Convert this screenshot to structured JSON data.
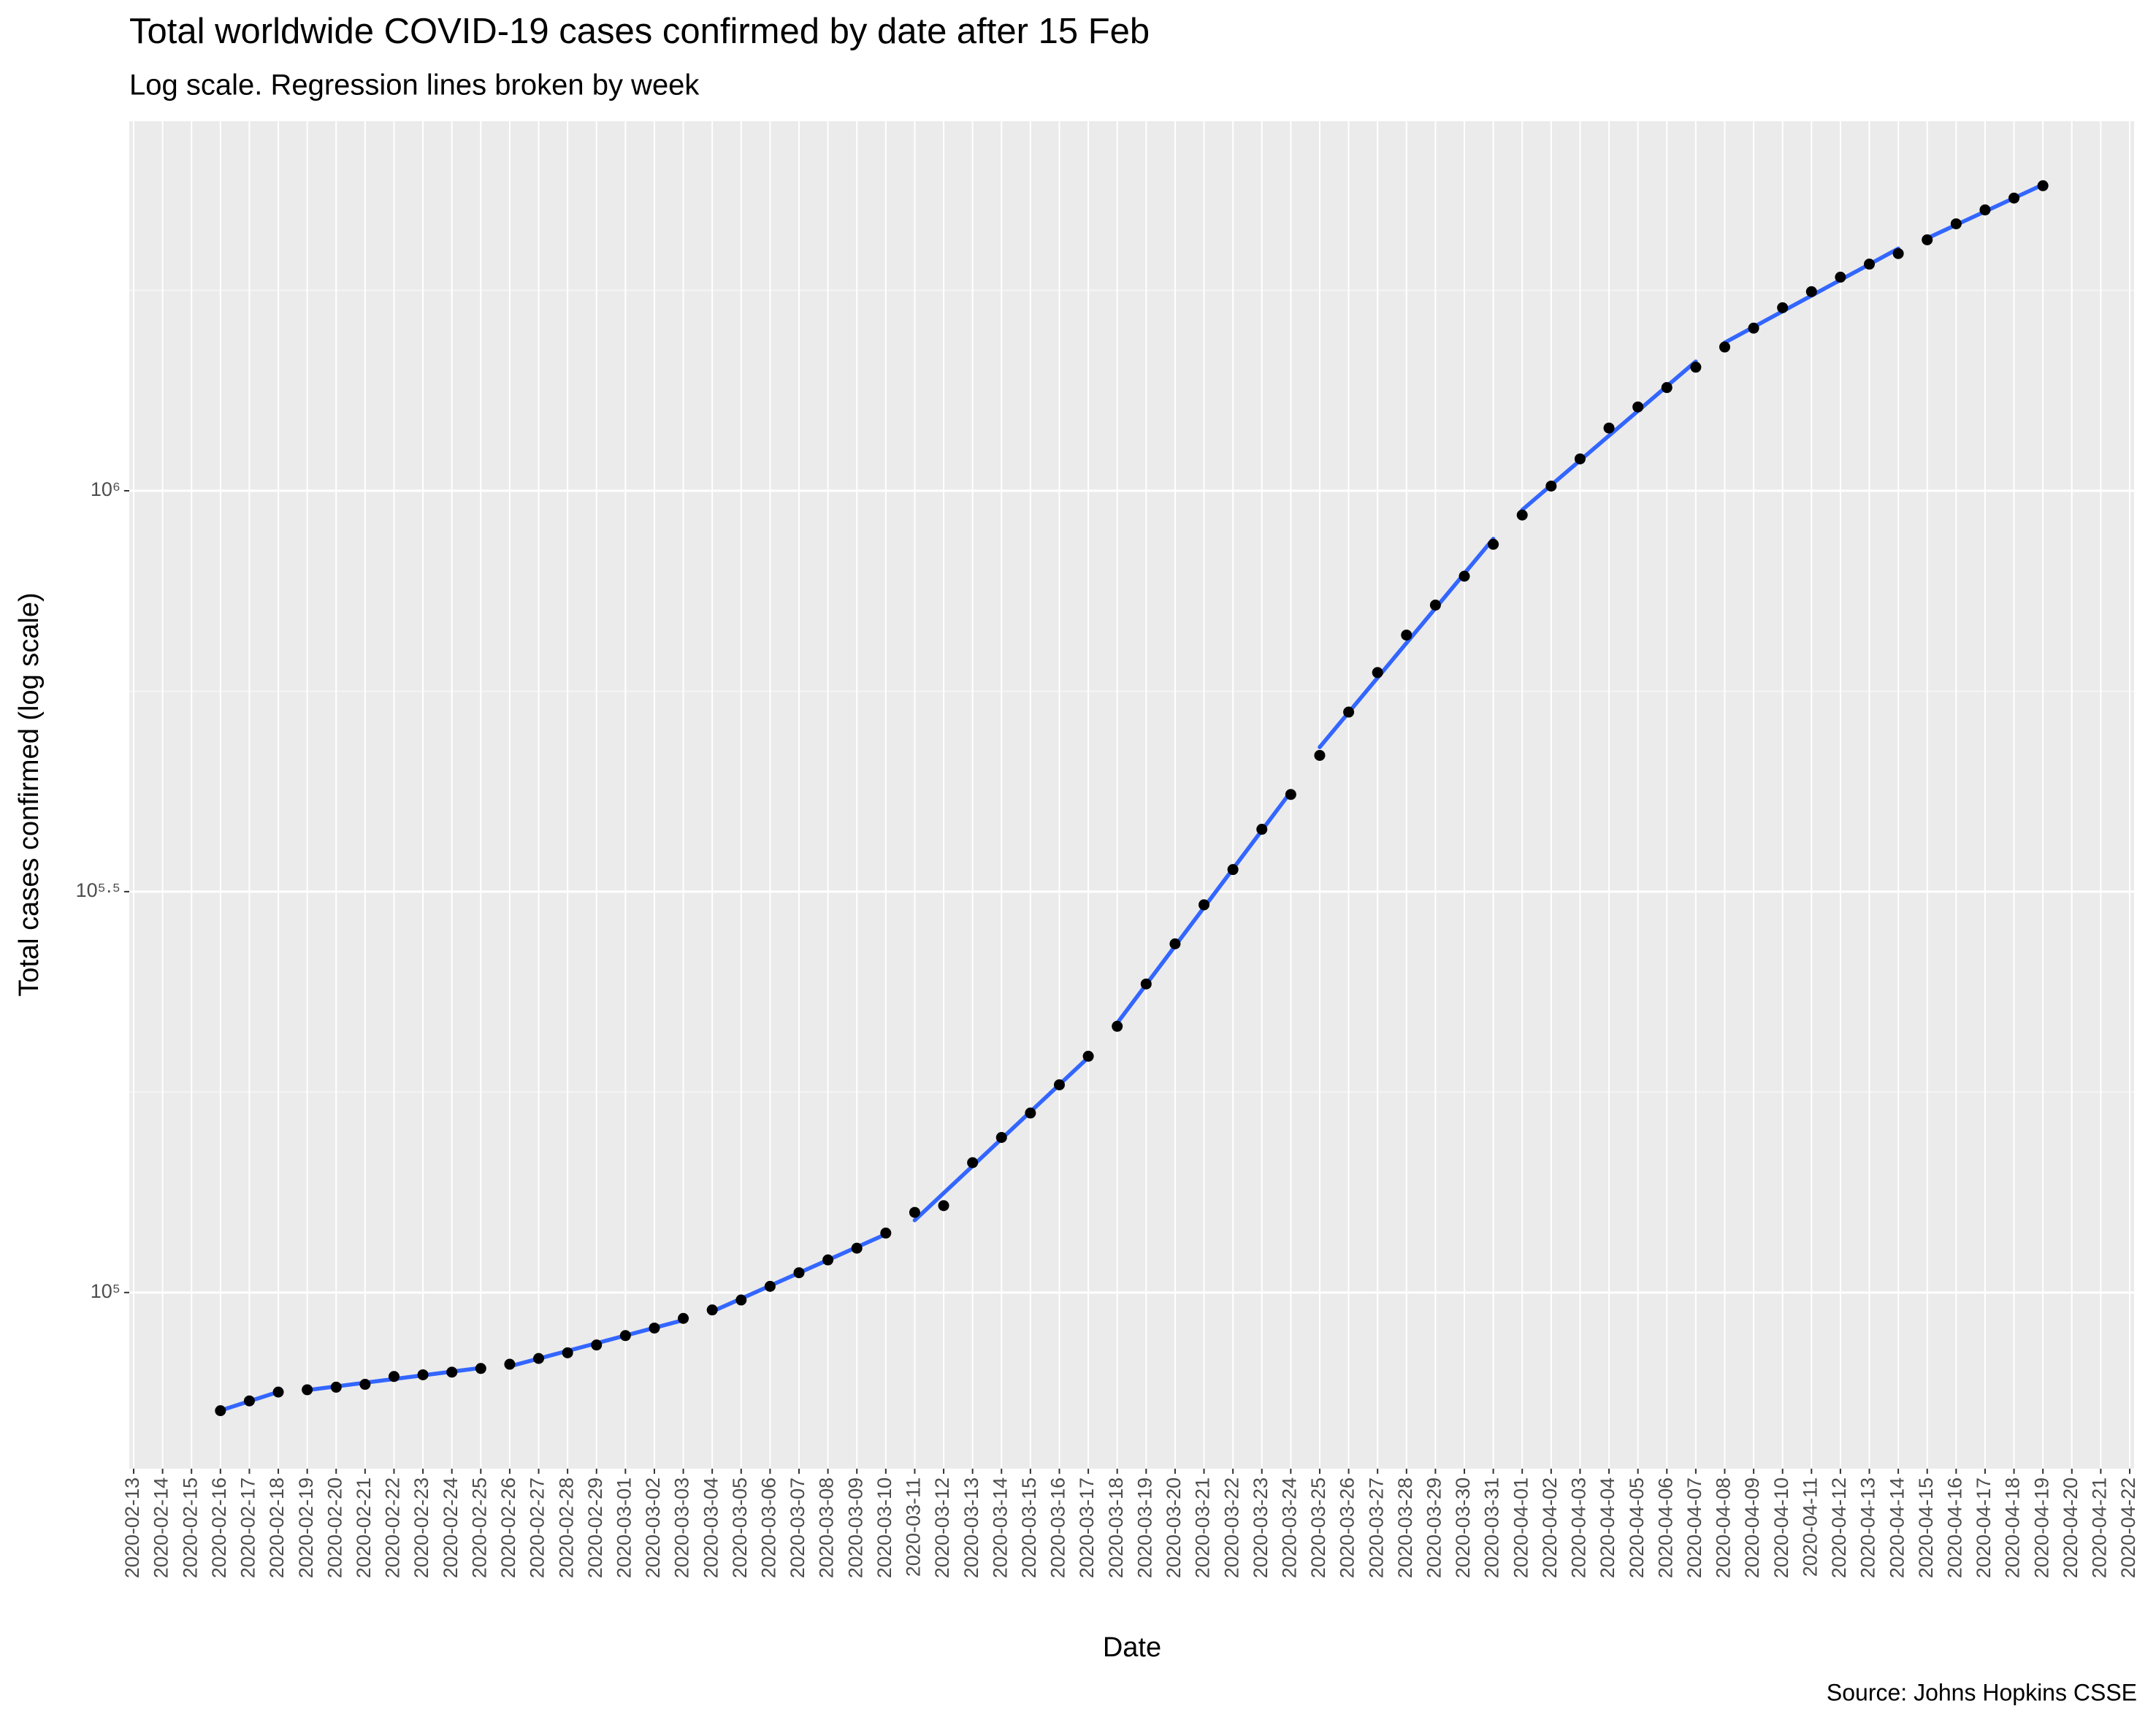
{
  "chart_data": {
    "type": "scatter",
    "title": "Total worldwide COVID-19 cases confirmed by date after 15 Feb",
    "subtitle": "Log scale. Regression lines broken by week",
    "x_label": "Date",
    "y_label": "Total cases confirmed (log scale)",
    "source": "Source: Johns Hopkins CSSE",
    "log_y": true,
    "grid": true,
    "point_color": "#000000",
    "line_color": "#3366ff",
    "x": [
      "2020-02-16",
      "2020-02-17",
      "2020-02-18",
      "2020-02-19",
      "2020-02-20",
      "2020-02-21",
      "2020-02-22",
      "2020-02-23",
      "2020-02-24",
      "2020-02-25",
      "2020-02-26",
      "2020-02-27",
      "2020-02-28",
      "2020-02-29",
      "2020-03-01",
      "2020-03-02",
      "2020-03-03",
      "2020-03-04",
      "2020-03-05",
      "2020-03-06",
      "2020-03-07",
      "2020-03-08",
      "2020-03-09",
      "2020-03-10",
      "2020-03-11",
      "2020-03-12",
      "2020-03-13",
      "2020-03-14",
      "2020-03-15",
      "2020-03-16",
      "2020-03-17",
      "2020-03-18",
      "2020-03-19",
      "2020-03-20",
      "2020-03-21",
      "2020-03-22",
      "2020-03-23",
      "2020-03-24",
      "2020-03-25",
      "2020-03-26",
      "2020-03-27",
      "2020-03-28",
      "2020-03-29",
      "2020-03-30",
      "2020-03-31",
      "2020-04-01",
      "2020-04-02",
      "2020-04-03",
      "2020-04-04",
      "2020-04-05",
      "2020-04-06",
      "2020-04-07",
      "2020-04-08",
      "2020-04-09",
      "2020-04-10",
      "2020-04-11",
      "2020-04-12",
      "2020-04-13",
      "2020-04-14",
      "2020-04-15",
      "2020-04-16",
      "2020-04-17",
      "2020-04-18",
      "2020-04-19"
    ],
    "values": [
      71224,
      73258,
      75136,
      75639,
      76197,
      76819,
      78572,
      78958,
      79561,
      80406,
      81388,
      82746,
      84112,
      86011,
      88369,
      90306,
      92840,
      95120,
      97886,
      101801,
      105847,
      109821,
      113590,
      118620,
      125875,
      128352,
      145205,
      156101,
      167454,
      181574,
      197102,
      214821,
      242570,
      272208,
      304507,
      336953,
      378235,
      418045,
      467653,
      529591,
      593291,
      660706,
      720117,
      782365,
      857487,
      932605,
      1013466,
      1095917,
      1197405,
      1272115,
      1345048,
      1426096,
      1511104,
      1595350,
      1691719,
      1771514,
      1846680,
      1917320,
      1976191,
      2056055,
      2152437,
      2240190,
      2317759,
      2401379
    ],
    "xlim": [
      "2020-02-13",
      "2020-04-22"
    ],
    "xticks": [
      "2020-02-13",
      "2020-02-14",
      "2020-02-15",
      "2020-02-16",
      "2020-02-17",
      "2020-02-18",
      "2020-02-19",
      "2020-02-20",
      "2020-02-21",
      "2020-02-22",
      "2020-02-23",
      "2020-02-24",
      "2020-02-25",
      "2020-02-26",
      "2020-02-27",
      "2020-02-28",
      "2020-02-29",
      "2020-03-01",
      "2020-03-02",
      "2020-03-03",
      "2020-03-04",
      "2020-03-05",
      "2020-03-06",
      "2020-03-07",
      "2020-03-08",
      "2020-03-09",
      "2020-03-10",
      "2020-03-11",
      "2020-03-12",
      "2020-03-13",
      "2020-03-14",
      "2020-03-15",
      "2020-03-16",
      "2020-03-17",
      "2020-03-18",
      "2020-03-19",
      "2020-03-20",
      "2020-03-21",
      "2020-03-22",
      "2020-03-23",
      "2020-03-24",
      "2020-03-25",
      "2020-03-26",
      "2020-03-27",
      "2020-03-28",
      "2020-03-29",
      "2020-03-30",
      "2020-03-31",
      "2020-04-01",
      "2020-04-02",
      "2020-04-03",
      "2020-04-04",
      "2020-04-05",
      "2020-04-06",
      "2020-04-07",
      "2020-04-08",
      "2020-04-09",
      "2020-04-10",
      "2020-04-11",
      "2020-04-12",
      "2020-04-13",
      "2020-04-14",
      "2020-04-15",
      "2020-04-16",
      "2020-04-17",
      "2020-04-18",
      "2020-04-19",
      "2020-04-20",
      "2020-04-21",
      "2020-04-22"
    ],
    "ylim": [
      60300,
      2890000
    ],
    "yticks": [
      {
        "value": 100000,
        "label": "10⁵"
      },
      {
        "value": 316228,
        "label": "10⁵·⁵"
      },
      {
        "value": 1000000,
        "label": "10⁶"
      }
    ],
    "y_minor_ticks": [
      177828,
      562341,
      1778279
    ]
  }
}
